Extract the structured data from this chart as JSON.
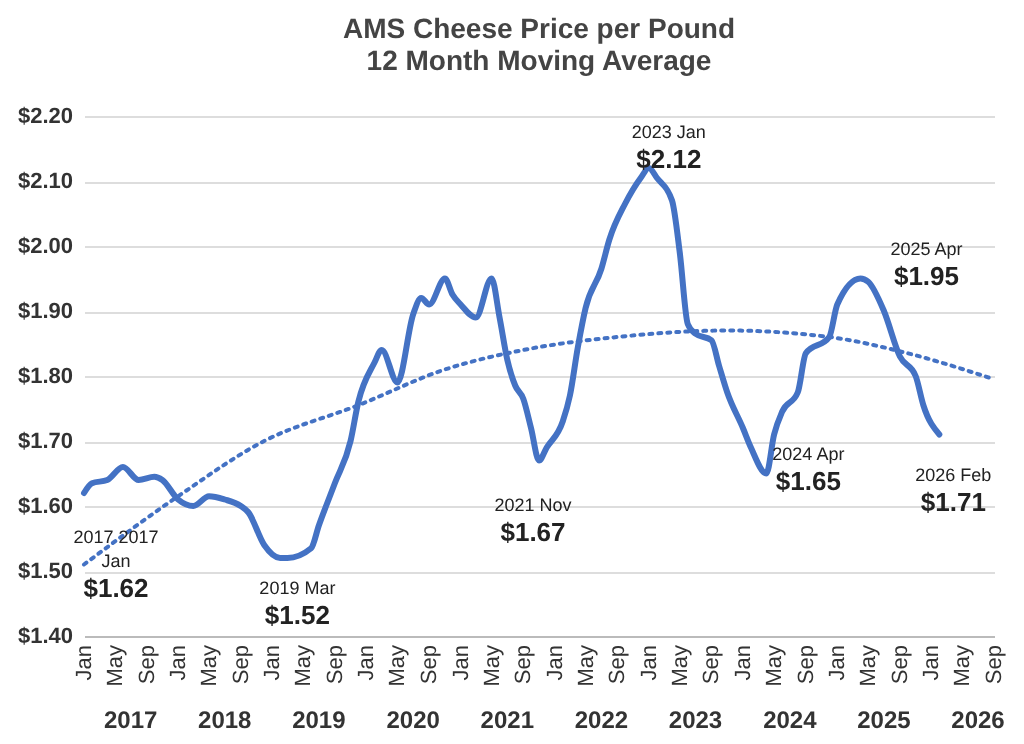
{
  "chart_data": {
    "type": "line",
    "title": "AMS Cheese Price per Pound",
    "subtitle": "12 Month Moving Average",
    "xlim": [
      "2017-01",
      "2026-09"
    ],
    "xticks": [
      {
        "value": "2017-01",
        "label": "Jan"
      },
      {
        "value": "2017-05",
        "label": "May"
      },
      {
        "value": "2017-09",
        "label": "Sep"
      },
      {
        "value": "2018-01",
        "label": "Jan"
      },
      {
        "value": "2018-05",
        "label": "May"
      },
      {
        "value": "2018-09",
        "label": "Sep"
      },
      {
        "value": "2019-01",
        "label": "Jan"
      },
      {
        "value": "2019-05",
        "label": "May"
      },
      {
        "value": "2019-09",
        "label": "Sep"
      },
      {
        "value": "2020-01",
        "label": "Jan"
      },
      {
        "value": "2020-05",
        "label": "May"
      },
      {
        "value": "2020-09",
        "label": "Sep"
      },
      {
        "value": "2021-01",
        "label": "Jan"
      },
      {
        "value": "2021-05",
        "label": "May"
      },
      {
        "value": "2021-09",
        "label": "Sep"
      },
      {
        "value": "2022-01",
        "label": "Jan"
      },
      {
        "value": "2022-05",
        "label": "May"
      },
      {
        "value": "2022-09",
        "label": "Sep"
      },
      {
        "value": "2023-01",
        "label": "Jan"
      },
      {
        "value": "2023-05",
        "label": "May"
      },
      {
        "value": "2023-09",
        "label": "Sep"
      },
      {
        "value": "2024-01",
        "label": "Jan"
      },
      {
        "value": "2024-05",
        "label": "May"
      },
      {
        "value": "2024-09",
        "label": "Sep"
      },
      {
        "value": "2025-01",
        "label": "Jan"
      },
      {
        "value": "2025-05",
        "label": "May"
      },
      {
        "value": "2025-09",
        "label": "Sep"
      },
      {
        "value": "2026-01",
        "label": "Jan"
      },
      {
        "value": "2026-05",
        "label": "May"
      },
      {
        "value": "2026-09",
        "label": "Sep"
      }
    ],
    "ylim": [
      1.4,
      2.2
    ],
    "yticks": [
      {
        "value": 1.4,
        "label": "$1.40"
      },
      {
        "value": 1.5,
        "label": "$1.50"
      },
      {
        "value": 1.6,
        "label": "$1.60"
      },
      {
        "value": 1.7,
        "label": "$1.70"
      },
      {
        "value": 1.8,
        "label": "$1.80"
      },
      {
        "value": 1.9,
        "label": "$1.90"
      },
      {
        "value": 2.0,
        "label": "$2.00"
      },
      {
        "value": 2.1,
        "label": "$2.10"
      },
      {
        "value": 2.2,
        "label": "$2.20"
      }
    ],
    "grid": "y",
    "series": [
      {
        "type": "line",
        "color": "#4472c4",
        "line_style": "solid",
        "x": [
          "2017-01",
          "2017-02",
          "2017-04",
          "2017-06",
          "2017-08",
          "2017-10",
          "2017-11",
          "2018-01",
          "2018-03",
          "2018-05",
          "2018-07",
          "2018-09",
          "2018-10",
          "2018-12",
          "2019-02",
          "2019-03",
          "2019-06",
          "2019-07",
          "2019-09",
          "2019-11",
          "2019-12",
          "2020-02",
          "2020-03",
          "2020-05",
          "2020-07",
          "2020-08",
          "2020-09",
          "2020-11",
          "2020-12",
          "2021-01",
          "2021-03",
          "2021-05",
          "2021-06",
          "2021-07",
          "2021-08",
          "2021-09",
          "2021-10",
          "2021-11",
          "2021-12",
          "2022-02",
          "2022-03",
          "2022-04",
          "2022-05",
          "2022-07",
          "2022-08",
          "2022-10",
          "2022-12",
          "2023-01",
          "2023-02",
          "2023-04",
          "2023-05",
          "2023-06",
          "2023-07",
          "2023-09",
          "2023-10",
          "2023-11",
          "2024-01",
          "2024-02",
          "2024-04",
          "2024-05",
          "2024-06",
          "2024-08",
          "2024-09",
          "2024-12",
          "2025-01",
          "2025-04",
          "2025-05",
          "2025-07",
          "2025-09",
          "2025-11",
          "2025-12",
          "2026-02"
        ],
        "values": [
          1.62,
          1.635,
          1.64,
          1.66,
          1.64,
          1.645,
          1.64,
          1.61,
          1.6,
          1.615,
          1.61,
          1.6,
          1.59,
          1.54,
          1.52,
          1.52,
          1.535,
          1.57,
          1.635,
          1.7,
          1.76,
          1.82,
          1.84,
          1.79,
          1.895,
          1.92,
          1.91,
          1.95,
          1.925,
          1.91,
          1.89,
          1.95,
          1.89,
          1.825,
          1.785,
          1.765,
          1.72,
          1.67,
          1.69,
          1.73,
          1.77,
          1.845,
          1.905,
          1.965,
          2.01,
          2.065,
          2.105,
          2.12,
          2.105,
          2.07,
          1.99,
          1.88,
          1.865,
          1.855,
          1.815,
          1.775,
          1.72,
          1.69,
          1.65,
          1.71,
          1.745,
          1.775,
          1.835,
          1.86,
          1.91,
          1.95,
          1.945,
          1.9,
          1.83,
          1.8,
          1.755,
          1.71
        ]
      },
      {
        "type": "line",
        "color": "#4472c4",
        "line_style": "dotted",
        "x": [
          "2017-01",
          "2018-01",
          "2018-12",
          "2019-12",
          "2020-11",
          "2021-09",
          "2022-09",
          "2023-11",
          "2024-12",
          "2025-10",
          "2026-09"
        ],
        "values": [
          1.51,
          1.615,
          1.7,
          1.755,
          1.81,
          1.84,
          1.86,
          1.87,
          1.86,
          1.835,
          1.795
        ]
      }
    ],
    "annotations": [
      {
        "text": "2017 2017\nJan\n$1.62",
        "x": "2017-01",
        "y": 1.62
      },
      {
        "text": "2019 Mar\n$1.52",
        "x": "2019-03",
        "y": 1.52
      },
      {
        "text": "2021 Nov\n$1.67",
        "x": "2021-11",
        "y": 1.67
      },
      {
        "text": "2023 Jan\n$2.12",
        "x": "2023-01",
        "y": 2.12
      },
      {
        "text": "2024 Apr\n$1.65",
        "x": "2024-04",
        "y": 1.65
      },
      {
        "text": "2025 Apr\n$1.95",
        "x": "2025-04",
        "y": 1.95
      },
      {
        "text": "2026 Feb\n$1.71",
        "x": "2026-02",
        "y": 1.71
      },
      "2017",
      "2018",
      "2019",
      "2020",
      "2021",
      "2022",
      "2023",
      "2024",
      "2025",
      "2026"
    ]
  }
}
